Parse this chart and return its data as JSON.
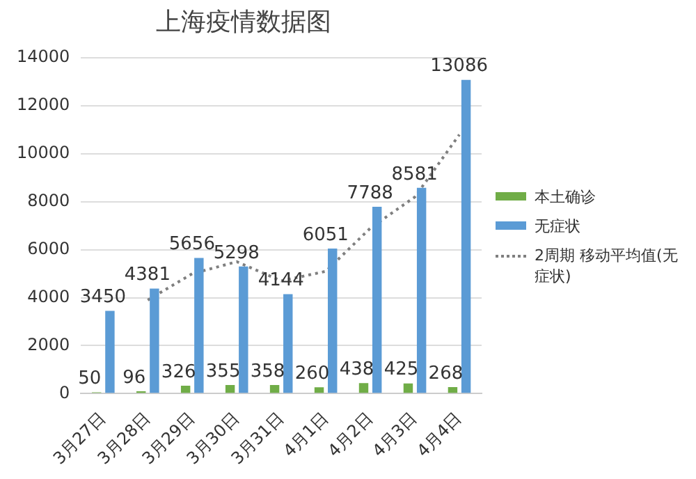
{
  "chart_data": {
    "type": "bar",
    "title": "上海疫情数据图",
    "categories": [
      "3月27日",
      "3月28日",
      "3月29日",
      "3月30日",
      "3月31日",
      "4月1日",
      "4月2日",
      "4月3日",
      "4月4日"
    ],
    "series": [
      {
        "name": "本土确诊",
        "color": "#70ad47",
        "values": [
          50,
          96,
          326,
          355,
          358,
          260,
          438,
          425,
          268
        ],
        "value_labels": [
          "50",
          "96",
          "326",
          "355",
          "358",
          "260",
          "438",
          "425",
          "268"
        ]
      },
      {
        "name": "无症状",
        "color": "#5b9bd5",
        "values": [
          3450,
          4381,
          5656,
          5298,
          4144,
          6051,
          7788,
          8581,
          13086
        ],
        "value_labels": [
          "3450",
          "4381",
          "5656",
          "5298",
          "4144",
          "6051",
          "7788",
          "8581",
          "13086"
        ]
      },
      {
        "name": "2周期 移动平均值(无症状)",
        "type": "line",
        "color": "#7f7f7f",
        "line_style": "dotted",
        "marker": "none",
        "values": [
          null,
          3900,
          5000,
          5500,
          4700,
          5100,
          6900,
          8200,
          10800
        ]
      }
    ],
    "ylim": [
      0,
      14000
    ],
    "yticks": [
      0,
      2000,
      4000,
      6000,
      8000,
      10000,
      12000,
      14000
    ],
    "grid": "y",
    "legend": "right"
  }
}
